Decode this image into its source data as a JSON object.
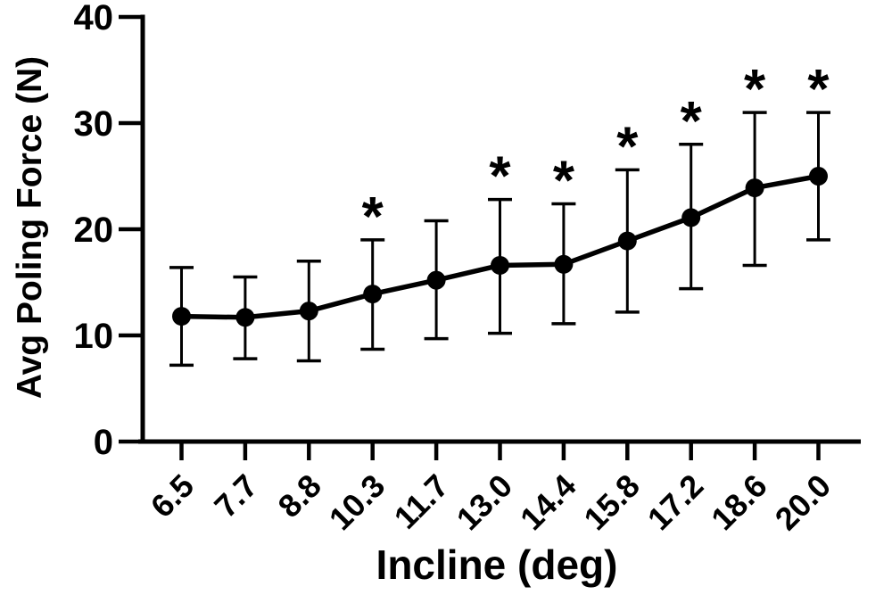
{
  "chart_data": {
    "type": "line",
    "title": "",
    "xlabel": "Incline (deg)",
    "ylabel": "Avg Poling Force (N)",
    "categories": [
      "6.5",
      "7.7",
      "8.8",
      "10.3",
      "11.7",
      "13.0",
      "14.4",
      "15.8",
      "17.2",
      "18.6",
      "20.0"
    ],
    "series": [
      {
        "values": [
          11.8,
          11.7,
          12.3,
          13.9,
          15.2,
          16.6,
          16.7,
          18.9,
          21.1,
          23.9,
          25.0
        ],
        "error_upper": [
          16.4,
          15.5,
          17.0,
          19.0,
          20.8,
          22.8,
          22.4,
          25.6,
          28.0,
          31.0,
          31.0
        ],
        "error_lower": [
          7.2,
          7.8,
          7.6,
          8.7,
          9.7,
          10.2,
          11.1,
          12.2,
          14.4,
          16.6,
          19.0
        ],
        "significant": [
          false,
          false,
          false,
          true,
          false,
          true,
          true,
          true,
          true,
          true,
          true
        ]
      }
    ],
    "significance_marker": "*",
    "ylim": [
      0,
      40
    ],
    "yticks": [
      0,
      10,
      20,
      30,
      40
    ],
    "grid": false,
    "legend": false,
    "marker": "circle",
    "colors": {
      "foreground": "#000000",
      "background": "#ffffff"
    }
  }
}
